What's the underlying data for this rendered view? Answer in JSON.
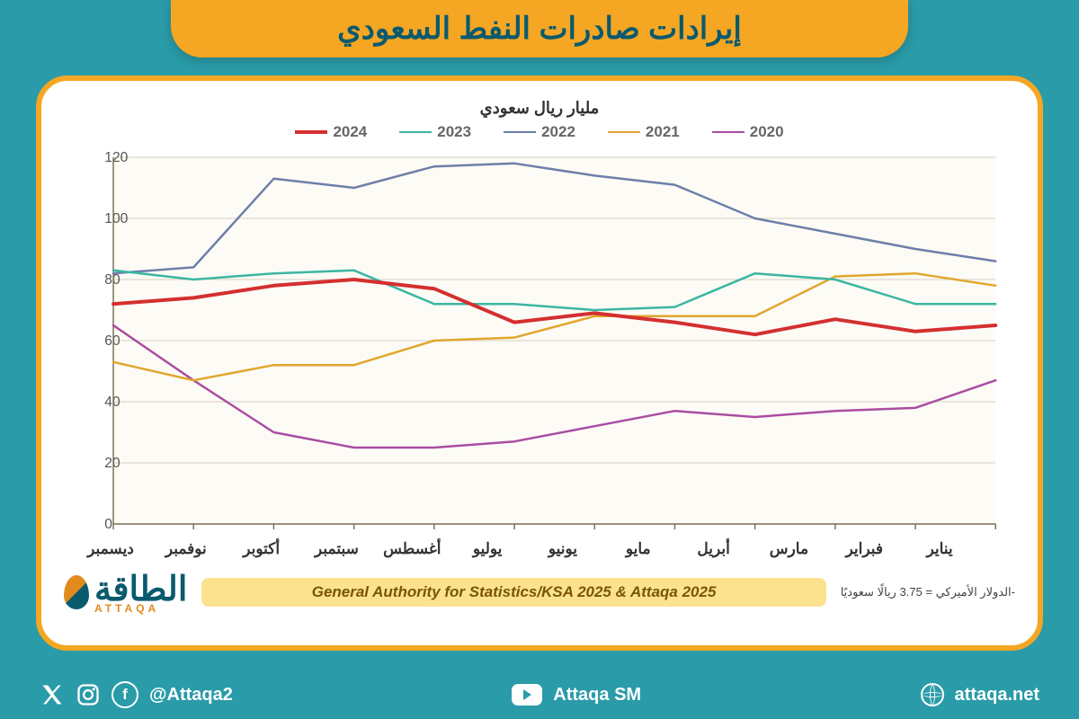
{
  "title": "إيرادات صادرات النفط السعودي",
  "subtitle": "مليار ريال سعودي",
  "chart": {
    "type": "line",
    "months": [
      "يناير",
      "فبراير",
      "مارس",
      "أبريل",
      "مايو",
      "يونيو",
      "يوليو",
      "أغسطس",
      "سبتمبر",
      "أكتوبر",
      "نوفمبر",
      "ديسمبر"
    ],
    "ylim": [
      0,
      120
    ],
    "ytick_step": 20,
    "background_color": "#ffffff",
    "grid_color": "#d7d2c4",
    "axis_color": "#7a6f55",
    "plot_fill": "#fdfbf5",
    "series": [
      {
        "name": "2020",
        "color": "#a94da3",
        "width": 2.5,
        "values": [
          65,
          47,
          30,
          25,
          25,
          27,
          32,
          37,
          35,
          37,
          38,
          47
        ]
      },
      {
        "name": "2021",
        "color": "#e0a72c",
        "width": 2.5,
        "values": [
          53,
          47,
          52,
          52,
          60,
          61,
          68,
          68,
          68,
          81,
          82,
          78
        ]
      },
      {
        "name": "2022",
        "color": "#6d7fa9",
        "width": 2.5,
        "values": [
          82,
          84,
          113,
          110,
          117,
          118,
          114,
          111,
          100,
          95,
          90,
          86
        ]
      },
      {
        "name": "2023",
        "color": "#3bb6a3",
        "width": 2.5,
        "values": [
          83,
          80,
          82,
          83,
          72,
          72,
          70,
          71,
          82,
          80,
          72,
          72
        ]
      },
      {
        "name": "2024",
        "color": "#d42f2f",
        "width": 4,
        "values": [
          72,
          74,
          78,
          80,
          77,
          66,
          69,
          66,
          62,
          67,
          63,
          65
        ]
      }
    ]
  },
  "exchange_note": "-الدولار الأميركي = 3.75 ريالًا سعوديًا",
  "source_text": "General Authority for Statistics/KSA 2025 & Attaqa 2025",
  "logo": {
    "ar": "الطاقة",
    "en": "ATTAQA"
  },
  "social": {
    "handle": "@Attaqa2",
    "youtube": "Attaqa SM",
    "site": "attaqa.net"
  },
  "layout": {
    "page_bg": "#2a9ba8",
    "banner_bg": "#f5a623",
    "panel_border": "#f5a623"
  }
}
